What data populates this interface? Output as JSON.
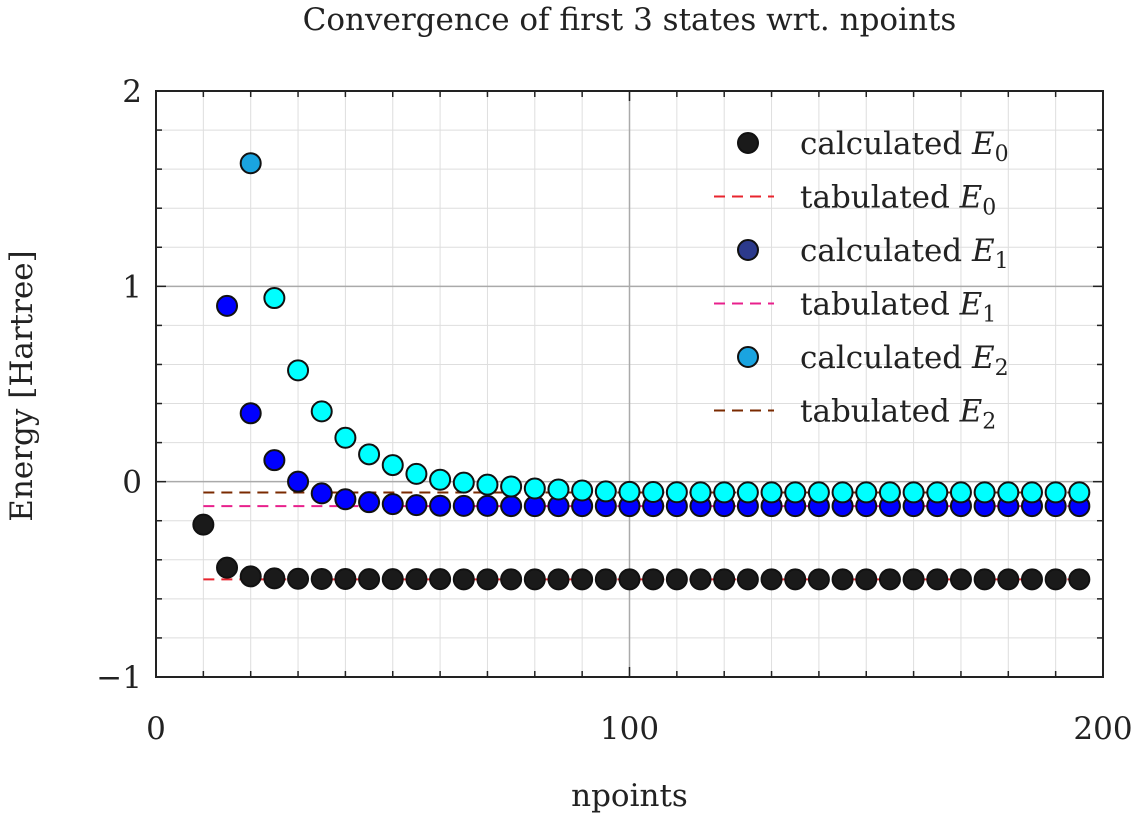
{
  "chart_data": {
    "type": "scatter",
    "title": "Convergence of first 3 states wrt. npoints",
    "xlabel": "npoints",
    "ylabel": "Energy [Hartree]",
    "xlim": [
      0,
      200
    ],
    "ylim": [
      -1,
      2
    ],
    "x_ticks": [
      "0",
      "100",
      "200"
    ],
    "y_ticks": [
      "−1",
      "0",
      "1",
      "2"
    ],
    "x_tick_values": [
      0,
      100,
      200
    ],
    "y_tick_values": [
      -1,
      0,
      1,
      2
    ],
    "grid": true,
    "legend_position": "top-right",
    "x": [
      10,
      15,
      20,
      25,
      30,
      35,
      40,
      45,
      50,
      55,
      60,
      65,
      70,
      75,
      80,
      85,
      90,
      95,
      100,
      105,
      110,
      115,
      120,
      125,
      130,
      135,
      140,
      145,
      150,
      155,
      160,
      165,
      170,
      175,
      180,
      185,
      190,
      195
    ],
    "series": [
      {
        "name": "calculated E0",
        "kind": "points",
        "color": "#1a1a1a",
        "values": [
          -0.22,
          -0.44,
          -0.485,
          -0.495,
          -0.497,
          -0.498,
          -0.498,
          -0.499,
          -0.499,
          -0.499,
          -0.499,
          -0.5,
          -0.5,
          -0.5,
          -0.5,
          -0.5,
          -0.5,
          -0.5,
          -0.5,
          -0.5,
          -0.5,
          -0.5,
          -0.5,
          -0.5,
          -0.5,
          -0.5,
          -0.5,
          -0.5,
          -0.5,
          -0.5,
          -0.5,
          -0.5,
          -0.5,
          -0.5,
          -0.5,
          -0.5,
          -0.5,
          -0.5
        ]
      },
      {
        "name": "tabulated E0",
        "kind": "dashed-line",
        "color": "#e8242e",
        "value": -0.5,
        "x_range": [
          10,
          195
        ]
      },
      {
        "name": "calculated E1",
        "kind": "points",
        "color": "#0000ff",
        "legend_color": "#2c3a8c",
        "values": [
          null,
          0.9,
          0.35,
          0.11,
          0.0,
          -0.06,
          -0.09,
          -0.105,
          -0.115,
          -0.12,
          -0.123,
          -0.124,
          -0.124,
          -0.125,
          -0.125,
          -0.125,
          -0.125,
          -0.125,
          -0.125,
          -0.125,
          -0.125,
          -0.125,
          -0.125,
          -0.125,
          -0.125,
          -0.125,
          -0.125,
          -0.125,
          -0.125,
          -0.125,
          -0.125,
          -0.125,
          -0.125,
          -0.125,
          -0.125,
          -0.125,
          -0.125,
          -0.125
        ]
      },
      {
        "name": "tabulated E1",
        "kind": "dashed-line",
        "color": "#e8208c",
        "value": -0.125,
        "x_range": [
          10,
          195
        ]
      },
      {
        "name": "calculated E2",
        "kind": "points",
        "color": "#00ffff",
        "legend_color": "#1aa4e0",
        "first_point_color": "#1aa4e0",
        "values": [
          null,
          null,
          1.63,
          0.94,
          0.57,
          0.36,
          0.225,
          0.14,
          0.085,
          0.04,
          0.01,
          -0.005,
          -0.015,
          -0.025,
          -0.035,
          -0.04,
          -0.045,
          -0.05,
          -0.052,
          -0.053,
          -0.054,
          -0.055,
          -0.055,
          -0.055,
          -0.055,
          -0.055,
          -0.055,
          -0.055,
          -0.055,
          -0.055,
          -0.055,
          -0.055,
          -0.055,
          -0.055,
          -0.055,
          -0.055,
          -0.055,
          -0.055
        ]
      },
      {
        "name": "tabulated E2",
        "kind": "dashed-line",
        "color": "#7a2a00",
        "value": -0.0556,
        "x_range": [
          10,
          195
        ]
      }
    ],
    "legend": [
      {
        "text": "calculated ",
        "var": "E",
        "sub": "0",
        "kind": "marker",
        "color": "#1a1a1a"
      },
      {
        "text": "tabulated ",
        "var": "E",
        "sub": "0",
        "kind": "line",
        "color": "#e8242e"
      },
      {
        "text": "calculated ",
        "var": "E",
        "sub": "1",
        "kind": "marker",
        "color": "#2c3a8c"
      },
      {
        "text": "tabulated ",
        "var": "E",
        "sub": "1",
        "kind": "line",
        "color": "#e8208c"
      },
      {
        "text": "calculated ",
        "var": "E",
        "sub": "2",
        "kind": "marker",
        "color": "#1aa4e0"
      },
      {
        "text": "tabulated ",
        "var": "E",
        "sub": "2",
        "kind": "line",
        "color": "#7a2a00"
      }
    ]
  }
}
